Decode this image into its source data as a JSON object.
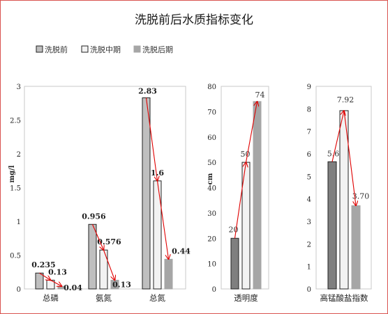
{
  "chart_data": {
    "type": "bar",
    "title": "洗脱前后水质指标变化",
    "legend": {
      "placement": "top-left",
      "entries": [
        {
          "name": "洗脱前",
          "color": "#bfbfbf",
          "stroke": "#222222"
        },
        {
          "name": "洗脱中期",
          "color": "#f2f2f2",
          "stroke": "#222222"
        },
        {
          "name": "洗脱后期",
          "color": "#a6a6a6",
          "stroke": "#a6a6a6"
        }
      ]
    },
    "trend_color": "#e00000",
    "panels": [
      {
        "id": "nutrients",
        "ylabel": "mg/l",
        "ylim": [
          0,
          3
        ],
        "yticks": [
          "0",
          "0.5",
          "1",
          "1.5",
          "2",
          "2.5",
          "3"
        ],
        "categories": [
          "总磷",
          "氨氮",
          "总氮"
        ],
        "colors": [
          "#bfbfbf",
          "#f2f2f2",
          "#a6a6a6"
        ],
        "strokes": [
          "#222222",
          "#222222",
          "#a6a6a6"
        ],
        "series": [
          {
            "name": "洗脱前",
            "values": [
              0.235,
              0.956,
              2.83
            ]
          },
          {
            "name": "洗脱中期",
            "values": [
              0.13,
              0.576,
              1.6
            ]
          },
          {
            "name": "洗脱后期",
            "values": [
              0.04,
              0.13,
              0.44
            ]
          }
        ],
        "labels": [
          [
            "0.235",
            "0.13",
            "0.04"
          ],
          [
            "0.956",
            "0.576",
            "0.13"
          ],
          [
            "2.83",
            "1.6",
            "0.44"
          ]
        ]
      },
      {
        "id": "transparency",
        "ylabel": "cm",
        "ylim": [
          0,
          80
        ],
        "yticks": [
          "0",
          "10",
          "20",
          "30",
          "40",
          "50",
          "60",
          "70",
          "80"
        ],
        "categories": [
          "透明度"
        ],
        "colors": [
          "#7f7f7f",
          "#f2f2f2",
          "#a6a6a6"
        ],
        "strokes": [
          "#222222",
          "#222222",
          "#a6a6a6"
        ],
        "series": [
          {
            "name": "洗脱前",
            "values": [
              20
            ]
          },
          {
            "name": "洗脱中期",
            "values": [
              50
            ]
          },
          {
            "name": "洗脱后期",
            "values": [
              74
            ]
          }
        ],
        "labels": [
          [
            "20",
            "50",
            "74"
          ]
        ]
      },
      {
        "id": "permanganate",
        "ylabel": "",
        "ylim": [
          0,
          9
        ],
        "yticks": [
          "0",
          "1",
          "2",
          "3",
          "4",
          "5",
          "6",
          "7",
          "8",
          "9"
        ],
        "categories": [
          "高锰酸盐指数"
        ],
        "colors": [
          "#7f7f7f",
          "#f2f2f2",
          "#a6a6a6"
        ],
        "strokes": [
          "#222222",
          "#222222",
          "#a6a6a6"
        ],
        "series": [
          {
            "name": "洗脱前",
            "values": [
              5.65
            ]
          },
          {
            "name": "洗脱中期",
            "values": [
              7.92
            ]
          },
          {
            "name": "洗脱后期",
            "values": [
              3.7
            ]
          }
        ],
        "labels": [
          [
            "5.65",
            "7.92",
            "3.70"
          ]
        ]
      }
    ]
  }
}
